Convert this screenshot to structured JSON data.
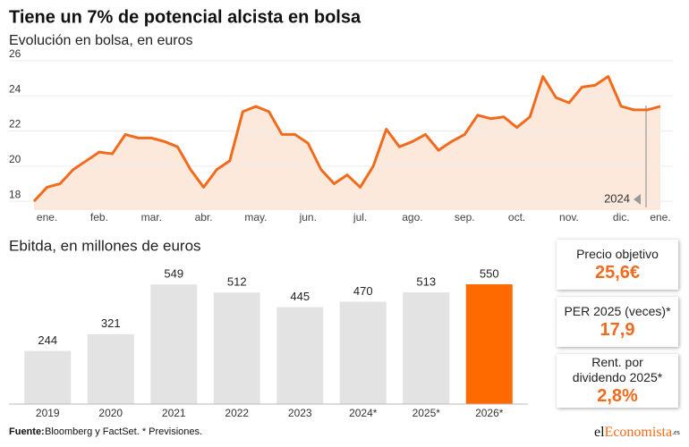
{
  "title": "Tiene un 7% de potencial alcista en bolsa",
  "chart_data": [
    {
      "type": "line",
      "subtitle": "Evolución en bolsa, en euros",
      "color": "#f26b1d",
      "area_color": "#fde9dc",
      "grid": true,
      "annotation": "2024",
      "categories": [
        null,
        "ene.",
        null,
        null,
        null,
        "feb.",
        null,
        null,
        null,
        "mar.",
        null,
        null,
        null,
        "abr.",
        null,
        null,
        null,
        "may.",
        null,
        null,
        null,
        "jun.",
        null,
        null,
        null,
        "jul.",
        null,
        null,
        null,
        "ago.",
        null,
        null,
        null,
        "sep.",
        null,
        null,
        null,
        "oct.",
        null,
        null,
        null,
        "nov.",
        null,
        null,
        null,
        "dic.",
        null,
        null,
        "ene."
      ],
      "values": [
        18.0,
        18.8,
        19.0,
        19.8,
        20.3,
        20.8,
        20.7,
        21.8,
        21.6,
        21.6,
        21.4,
        21.1,
        19.8,
        18.8,
        19.8,
        20.3,
        23.1,
        23.4,
        23.1,
        21.8,
        21.8,
        21.3,
        19.8,
        19.0,
        19.5,
        18.8,
        20.0,
        22.1,
        21.1,
        21.4,
        21.8,
        20.9,
        21.4,
        21.8,
        22.9,
        22.7,
        22.8,
        22.2,
        22.8,
        25.1,
        23.9,
        23.6,
        24.5,
        24.6,
        25.1,
        23.4,
        23.2,
        23.2,
        23.4
      ],
      "ylim": [
        17.5,
        26.5
      ],
      "yticks": [
        18,
        20,
        22,
        24,
        26
      ]
    },
    {
      "type": "bar",
      "title": "Ebitda, en millones de euros",
      "categories": [
        "2019",
        "2020",
        "2021",
        "2022",
        "2023",
        "2024*",
        "2025*",
        "2026*"
      ],
      "values": [
        244,
        321,
        549,
        512,
        445,
        470,
        513,
        550
      ],
      "colors": [
        "#e3e3e3",
        "#e3e3e3",
        "#e3e3e3",
        "#e3e3e3",
        "#e3e3e3",
        "#e3e3e3",
        "#e3e3e3",
        "#ff6a00"
      ]
    }
  ],
  "kpis": [
    {
      "label": "Precio objetivo",
      "value": "25,6€"
    },
    {
      "label": "PER 2025 (veces)*",
      "value": "17,9"
    },
    {
      "label": "Rent. por dividendo 2025*",
      "value": "2,8%"
    }
  ],
  "source_label": "Fuente:",
  "source": "Bloomberg y FactSet. * Previsiones.",
  "logo": {
    "a": "el",
    "b": "Economista",
    "c": ".es"
  }
}
